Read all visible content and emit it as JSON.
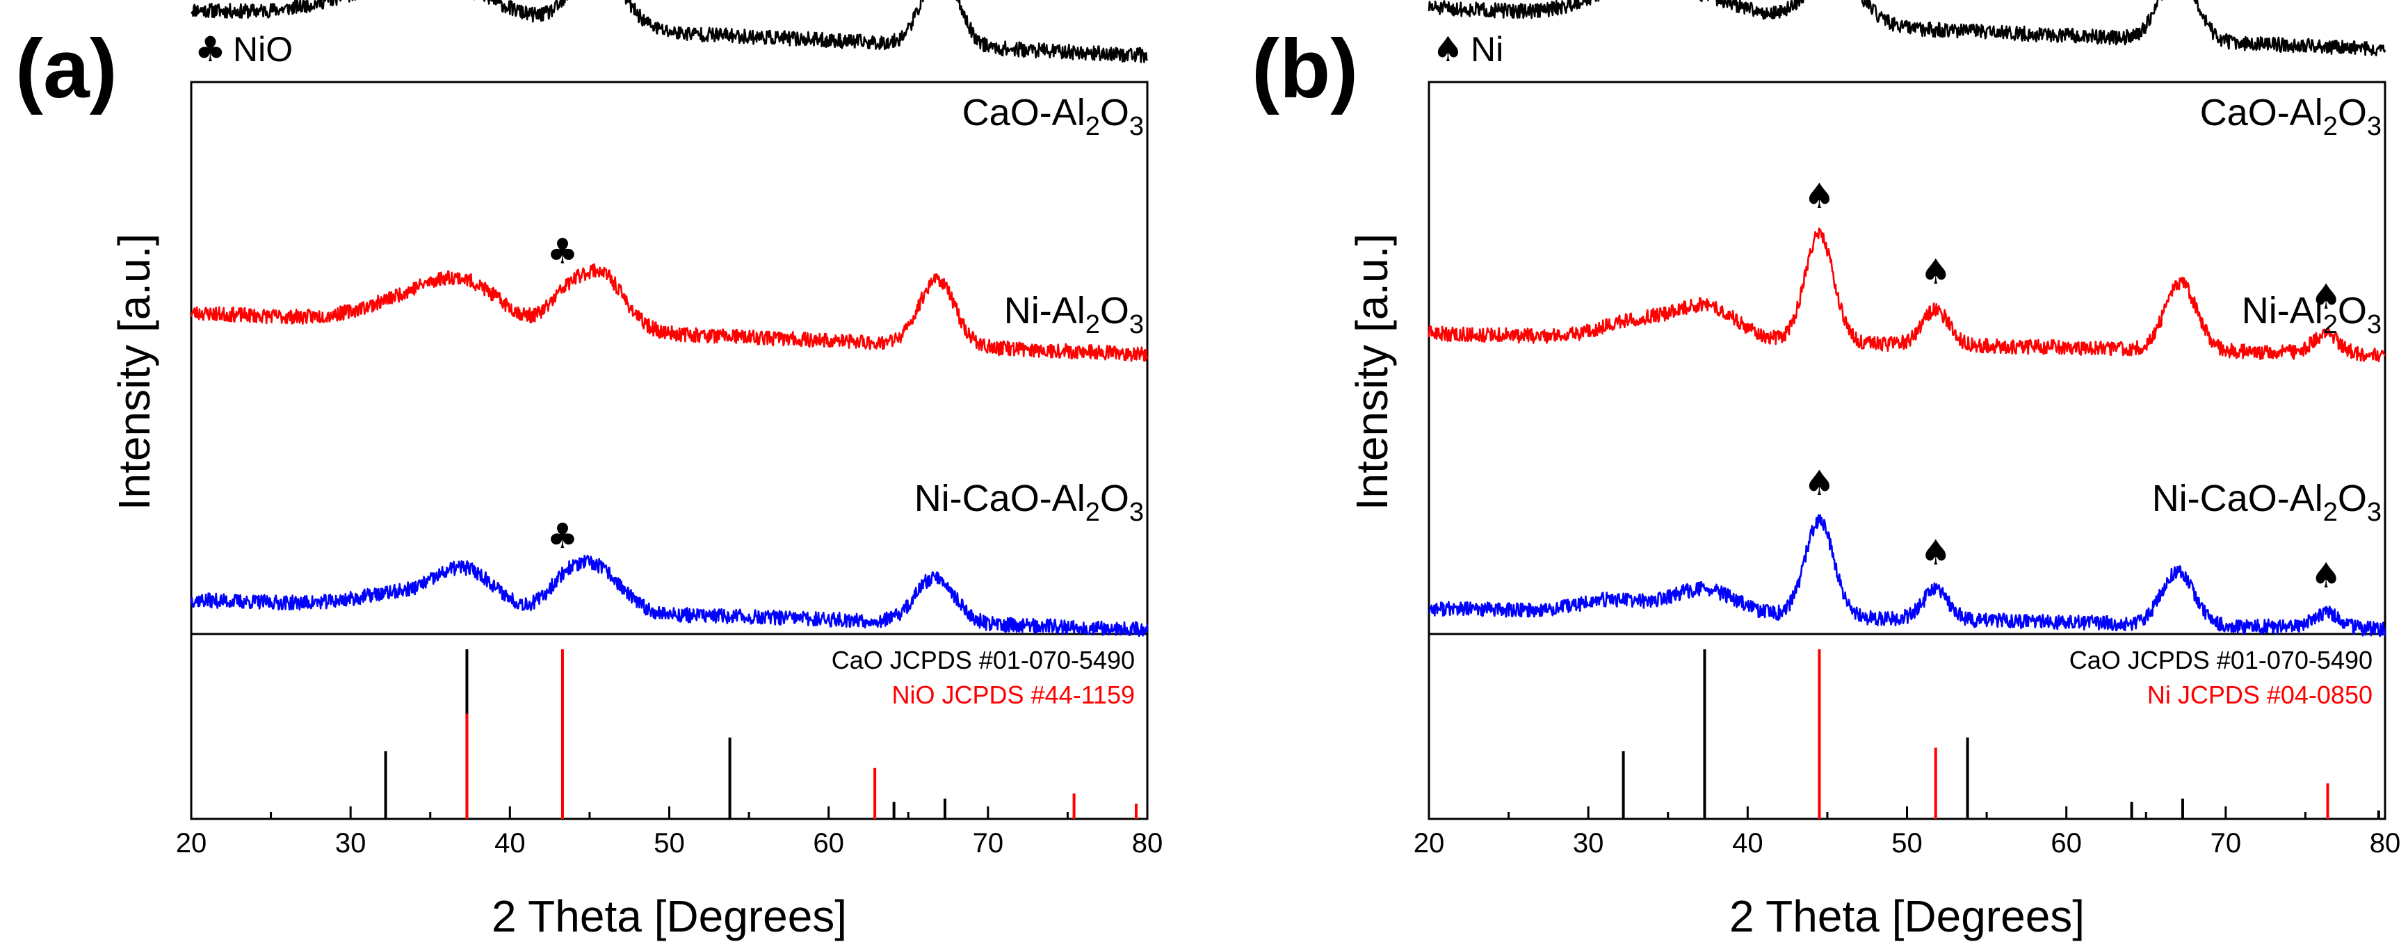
{
  "colors": {
    "black": "#000000",
    "red": "#ff0000",
    "blue": "#0000ff"
  },
  "chart_data": [
    {
      "type": "line",
      "panel_label": "(a)",
      "marker_legend": {
        "symbol": "♣",
        "text": "NiO"
      },
      "xlabel": "2 Theta [Degrees]",
      "ylabel": "Intensity [a.u.]",
      "xlim": [
        20,
        80
      ],
      "xticks": [
        20,
        30,
        40,
        50,
        60,
        70,
        80
      ],
      "series": [
        {
          "name": "CaO-Al2O3",
          "label_main": "CaO-Al",
          "label_sub1": "2",
          "label_mid": "O",
          "label_sub2": "3",
          "color": "#000000",
          "baseline": 0.85,
          "slope": 0.22,
          "noise": 0.035,
          "seed": 11,
          "peaks": [
            [
              32,
              0.12,
              3.5
            ],
            [
              37,
              0.12,
              3.0
            ],
            [
              45.5,
              0.28,
              1.6
            ],
            [
              67,
              0.38,
              1.1
            ]
          ]
        },
        {
          "name": "Ni-Al2O3",
          "label_main": "Ni-Al",
          "label_sub1": "2",
          "label_mid": "O",
          "label_sub2": "3",
          "color": "#ff0000",
          "baseline": 0.45,
          "slope": 0.2,
          "noise": 0.035,
          "seed": 23,
          "peaks": [
            [
              33,
              0.08,
              2.5
            ],
            [
              37,
              0.2,
              2.4
            ],
            [
              43.3,
              0.1,
              1.0
            ],
            [
              45.6,
              0.28,
              1.5
            ],
            [
              66.8,
              0.32,
              1.1
            ]
          ]
        },
        {
          "name": "Ni-CaO-Al2O3",
          "label_main": "Ni-CaO-Al",
          "label_sub1": "2",
          "label_mid": "O",
          "label_sub2": "3",
          "color": "#0000ff",
          "baseline": 0.05,
          "slope": 0.14,
          "noise": 0.035,
          "seed": 37,
          "peaks": [
            [
              33,
              0.06,
              2.5
            ],
            [
              37.2,
              0.18,
              1.8
            ],
            [
              43.3,
              0.08,
              1.0
            ],
            [
              45.3,
              0.22,
              1.6
            ],
            [
              66.7,
              0.22,
              1.2
            ]
          ]
        }
      ],
      "peak_markers": [
        {
          "symbol": "♣",
          "x": 43.3,
          "series": 1
        },
        {
          "symbol": "♣",
          "x": 43.3,
          "series": 2
        }
      ],
      "reference": {
        "labels": [
          {
            "text": "CaO JCPDS #01-070-5490",
            "color": "#000000"
          },
          {
            "text": "NiO JCPDS #44-1159",
            "color": "#ff0000"
          }
        ],
        "lines": [
          {
            "x": 32.2,
            "h": 0.4,
            "color": "#000000"
          },
          {
            "x": 37.3,
            "h": 1.0,
            "color": "#000000"
          },
          {
            "x": 37.3,
            "h": 0.62,
            "color": "#ff0000"
          },
          {
            "x": 43.3,
            "h": 1.0,
            "color": "#ff0000"
          },
          {
            "x": 53.8,
            "h": 0.48,
            "color": "#000000"
          },
          {
            "x": 62.9,
            "h": 0.3,
            "color": "#ff0000"
          },
          {
            "x": 64.1,
            "h": 0.1,
            "color": "#000000"
          },
          {
            "x": 67.3,
            "h": 0.12,
            "color": "#000000"
          },
          {
            "x": 75.4,
            "h": 0.15,
            "color": "#ff0000"
          },
          {
            "x": 79.3,
            "h": 0.09,
            "color": "#ff0000"
          }
        ]
      }
    },
    {
      "type": "line",
      "panel_label": "(b)",
      "marker_legend": {
        "symbol": "♠",
        "text": "Ni"
      },
      "xlabel": "2 Theta [Degrees]",
      "ylabel": "Intensity [a.u.]",
      "xlim": [
        20,
        80
      ],
      "xticks": [
        20,
        30,
        40,
        50,
        60,
        70,
        80
      ],
      "series": [
        {
          "name": "CaO-Al2O3",
          "label_main": "CaO-Al",
          "label_sub1": "2",
          "label_mid": "O",
          "label_sub2": "3",
          "color": "#000000",
          "baseline": 0.88,
          "slope": 0.2,
          "noise": 0.035,
          "seed": 51,
          "peaks": [
            [
              32.5,
              0.12,
              2.5
            ],
            [
              37,
              0.1,
              3.0
            ],
            [
              45.4,
              0.26,
              1.6
            ],
            [
              67,
              0.34,
              1.1
            ]
          ]
        },
        {
          "name": "Ni-Al2O3",
          "label_main": "Ni-Al",
          "label_sub1": "2",
          "label_mid": "O",
          "label_sub2": "3",
          "color": "#ff0000",
          "baseline": 0.45,
          "slope": 0.1,
          "noise": 0.035,
          "seed": 63,
          "peaks": [
            [
              32.8,
              0.08,
              2.0
            ],
            [
              37.3,
              0.16,
              2.0
            ],
            [
              44.5,
              0.52,
              0.9
            ],
            [
              51.8,
              0.17,
              0.8
            ],
            [
              67.2,
              0.32,
              1.0
            ],
            [
              76.3,
              0.09,
              0.8
            ]
          ]
        },
        {
          "name": "Ni-CaO-Al2O3",
          "label_main": "Ni-CaO-Al",
          "label_sub1": "2",
          "label_mid": "O",
          "label_sub2": "3",
          "color": "#0000ff",
          "baseline": 0.05,
          "slope": 0.1,
          "noise": 0.035,
          "seed": 77,
          "peaks": [
            [
              31.5,
              0.06,
              2.0
            ],
            [
              37.2,
              0.12,
              2.0
            ],
            [
              44.5,
              0.46,
              0.9
            ],
            [
              51.8,
              0.14,
              0.8
            ],
            [
              67,
              0.26,
              1.0
            ],
            [
              76.3,
              0.07,
              0.8
            ]
          ]
        }
      ],
      "peak_markers": [
        {
          "symbol": "♠",
          "x": 44.5,
          "series": 1
        },
        {
          "symbol": "♠",
          "x": 51.8,
          "series": 1
        },
        {
          "symbol": "♠",
          "x": 76.3,
          "series": 1
        },
        {
          "symbol": "♠",
          "x": 44.5,
          "series": 2
        },
        {
          "symbol": "♠",
          "x": 51.8,
          "series": 2
        },
        {
          "symbol": "♠",
          "x": 76.3,
          "series": 2
        }
      ],
      "reference": {
        "labels": [
          {
            "text": "CaO JCPDS #01-070-5490",
            "color": "#000000"
          },
          {
            "text": "Ni  JCPDS #04-0850",
            "color": "#ff0000"
          }
        ],
        "lines": [
          {
            "x": 32.2,
            "h": 0.4,
            "color": "#000000"
          },
          {
            "x": 37.3,
            "h": 1.0,
            "color": "#000000"
          },
          {
            "x": 44.5,
            "h": 1.0,
            "color": "#ff0000"
          },
          {
            "x": 51.8,
            "h": 0.42,
            "color": "#ff0000"
          },
          {
            "x": 53.8,
            "h": 0.48,
            "color": "#000000"
          },
          {
            "x": 64.1,
            "h": 0.1,
            "color": "#000000"
          },
          {
            "x": 67.3,
            "h": 0.12,
            "color": "#000000"
          },
          {
            "x": 76.4,
            "h": 0.21,
            "color": "#ff0000"
          },
          {
            "x": 79.6,
            "h": 0.05,
            "color": "#000000"
          }
        ]
      }
    }
  ]
}
